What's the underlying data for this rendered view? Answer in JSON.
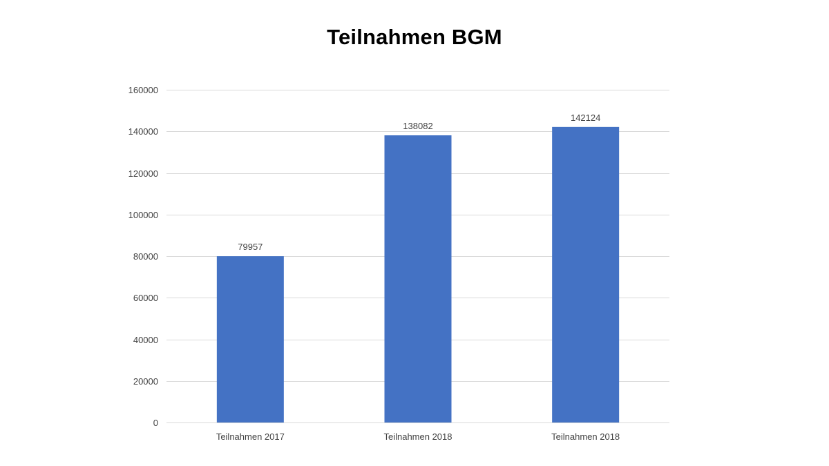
{
  "chart_data": {
    "type": "bar",
    "title": "Teilnahmen BGM",
    "xlabel": "",
    "ylabel": "",
    "categories": [
      "Teilnahmen 2017",
      "Teilnahmen 2018",
      "Teilnahmen 2018"
    ],
    "values": [
      79957,
      138082,
      142124
    ],
    "data_labels": [
      "79957",
      "138082",
      "142124"
    ],
    "ylim": [
      0,
      160000
    ],
    "yticks": [
      "0",
      "20000",
      "40000",
      "60000",
      "80000",
      "100000",
      "120000",
      "140000",
      "160000"
    ],
    "ytick_values": [
      0,
      20000,
      40000,
      60000,
      80000,
      100000,
      120000,
      140000,
      160000
    ],
    "grid": true,
    "legend": "none",
    "bar_color": "#4472C4",
    "grid_color": "#D9D9D9",
    "text_color": "#404040"
  }
}
